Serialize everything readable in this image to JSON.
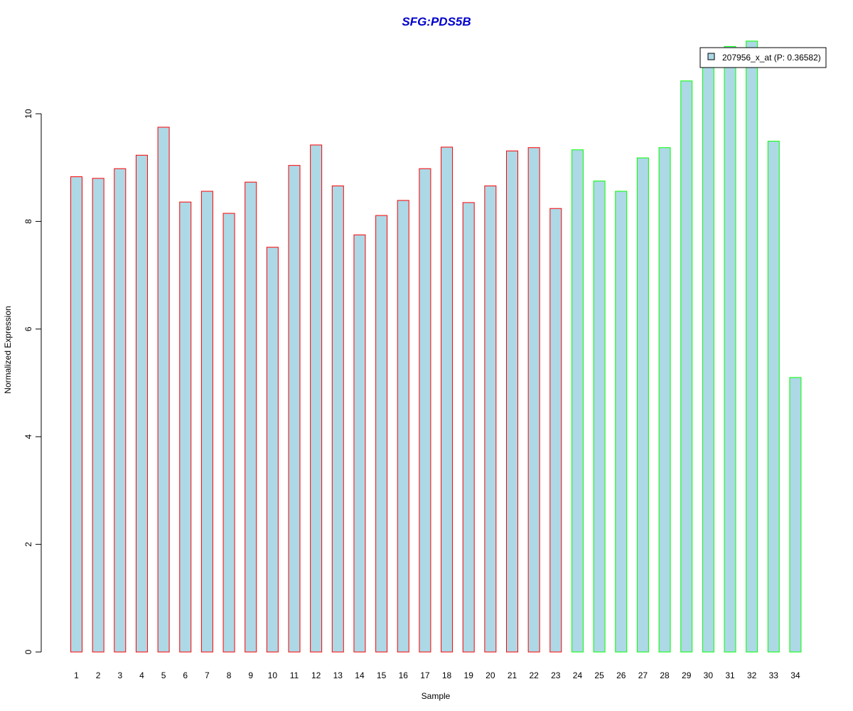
{
  "chart_data": {
    "type": "bar",
    "title": "SFG:PDS5B",
    "xlabel": "Sample",
    "ylabel": "Normalized Expression",
    "ylim": [
      0,
      11.5
    ],
    "yticks": [
      0,
      2,
      4,
      6,
      8,
      10
    ],
    "categories": [
      "1",
      "2",
      "3",
      "4",
      "5",
      "6",
      "7",
      "8",
      "9",
      "10",
      "11",
      "12",
      "13",
      "14",
      "15",
      "16",
      "17",
      "18",
      "19",
      "20",
      "21",
      "22",
      "23",
      "24",
      "25",
      "26",
      "27",
      "28",
      "29",
      "30",
      "31",
      "32",
      "33",
      "34"
    ],
    "series": [
      {
        "name": "207956_x_at (P: 0.36582)",
        "values": [
          8.83,
          8.8,
          8.98,
          9.23,
          9.75,
          8.36,
          8.56,
          8.15,
          8.73,
          7.52,
          9.04,
          9.42,
          8.66,
          7.75,
          8.11,
          8.39,
          8.98,
          9.38,
          8.35,
          8.66,
          9.31,
          9.37,
          8.24,
          9.33,
          8.75,
          8.56,
          9.18,
          9.37,
          10.61,
          11.07,
          11.25,
          11.35,
          9.49,
          5.1
        ]
      }
    ],
    "groups": [
      "a",
      "a",
      "a",
      "a",
      "a",
      "a",
      "a",
      "a",
      "a",
      "a",
      "a",
      "a",
      "a",
      "a",
      "a",
      "a",
      "a",
      "a",
      "a",
      "a",
      "a",
      "a",
      "a",
      "b",
      "b",
      "b",
      "b",
      "b",
      "b",
      "b",
      "b",
      "b",
      "b",
      "b"
    ],
    "fill_color": "#add8e6",
    "group_colors": {
      "a": "#ff0000",
      "b": "#00ff00"
    },
    "title_color": "#0000cc",
    "legend_position": "top-right",
    "grid": false
  }
}
